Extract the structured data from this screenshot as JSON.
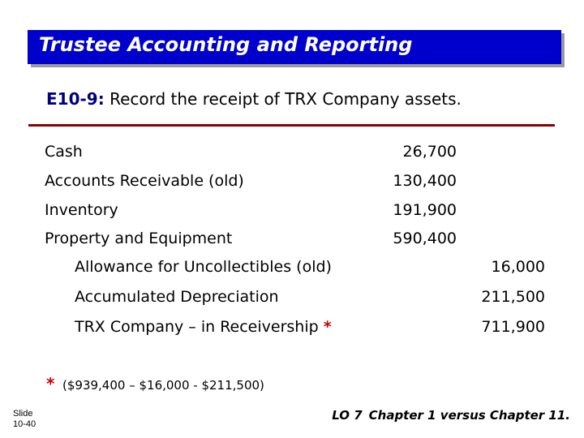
{
  "header": {
    "title": "Trustee Accounting and Reporting"
  },
  "exercise": {
    "id": "E10-9:",
    "text": "Record the receipt of TRX Company assets."
  },
  "entries": [
    {
      "account": "Cash",
      "debit": "26,700",
      "credit": ""
    },
    {
      "account": "Accounts Receivable (old)",
      "debit": "130,400",
      "credit": ""
    },
    {
      "account": "Inventory",
      "debit": "191,900",
      "credit": ""
    },
    {
      "account": "Property and Equipment",
      "debit": "590,400",
      "credit": ""
    },
    {
      "account": "Allowance for Uncollectibles (old)",
      "debit": "",
      "credit": "16,000"
    },
    {
      "account": "Accumulated Depreciation",
      "debit": "",
      "credit": "211,500"
    },
    {
      "account": "TRX Company – in Receivership",
      "marker": "*",
      "debit": "",
      "credit": "711,900"
    }
  ],
  "footnote": {
    "marker": "*",
    "text": "($939,400 – $16,000 - $211,500)"
  },
  "footer": {
    "slide_label": "Slide",
    "slide_number": "10-40",
    "lo": "LO 7",
    "chapter": "Chapter 1 versus Chapter 11."
  },
  "colors": {
    "title_bar": "#0000cc",
    "rule": "#8b0000",
    "marker": "#cc0000"
  }
}
